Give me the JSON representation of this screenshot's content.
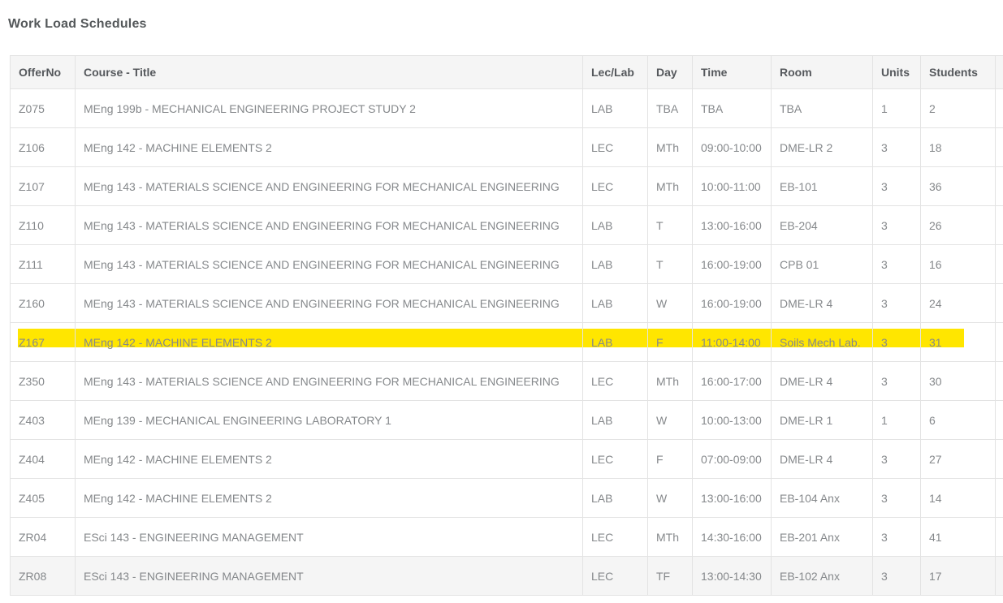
{
  "page": {
    "title": "Work Load Schedules"
  },
  "colors": {
    "highlight": "#ffe600",
    "header_bg": "#f5f5f5",
    "shaded_row_bg": "#f5f5f5",
    "border": "#e3e3e3",
    "header_text": "#55585c",
    "cell_text": "#85888b",
    "title_text": "#54585a"
  },
  "table": {
    "columns": [
      "OfferNo",
      "Course - Title",
      "Lec/Lab",
      "Day",
      "Time",
      "Room",
      "Units",
      "Students"
    ],
    "highlighted_offer_no": "Z167",
    "shaded_offer_no": "ZR08",
    "rows": [
      {
        "offer_no": "Z075",
        "course_title": "MEng 199b - MECHANICAL ENGINEERING PROJECT STUDY 2",
        "lec_lab": "LAB",
        "day": "TBA",
        "time": "TBA",
        "room": "TBA",
        "units": "1",
        "students": "2"
      },
      {
        "offer_no": "Z106",
        "course_title": "MEng 142 - MACHINE ELEMENTS 2",
        "lec_lab": "LEC",
        "day": "MTh",
        "time": "09:00-10:00",
        "room": "DME-LR 2",
        "units": "3",
        "students": "18"
      },
      {
        "offer_no": "Z107",
        "course_title": "MEng 143 - MATERIALS SCIENCE AND ENGINEERING FOR MECHANICAL ENGINEERING",
        "lec_lab": "LEC",
        "day": "MTh",
        "time": "10:00-11:00",
        "room": "EB-101",
        "units": "3",
        "students": "36"
      },
      {
        "offer_no": "Z110",
        "course_title": "MEng 143 - MATERIALS SCIENCE AND ENGINEERING FOR MECHANICAL ENGINEERING",
        "lec_lab": "LAB",
        "day": "T",
        "time": "13:00-16:00",
        "room": "EB-204",
        "units": "3",
        "students": "26"
      },
      {
        "offer_no": "Z111",
        "course_title": "MEng 143 - MATERIALS SCIENCE AND ENGINEERING FOR MECHANICAL ENGINEERING",
        "lec_lab": "LAB",
        "day": "T",
        "time": "16:00-19:00",
        "room": "CPB 01",
        "units": "3",
        "students": "16"
      },
      {
        "offer_no": "Z160",
        "course_title": "MEng 143 - MATERIALS SCIENCE AND ENGINEERING FOR MECHANICAL ENGINEERING",
        "lec_lab": "LAB",
        "day": "W",
        "time": "16:00-19:00",
        "room": "DME-LR 4",
        "units": "3",
        "students": "24"
      },
      {
        "offer_no": "Z167",
        "course_title": "MEng 142 - MACHINE ELEMENTS 2",
        "lec_lab": "LAB",
        "day": "F",
        "time": "11:00-14:00",
        "room": "Soils Mech Lab.",
        "units": "3",
        "students": "31"
      },
      {
        "offer_no": "Z350",
        "course_title": "MEng 143 - MATERIALS SCIENCE AND ENGINEERING FOR MECHANICAL ENGINEERING",
        "lec_lab": "LEC",
        "day": "MTh",
        "time": "16:00-17:00",
        "room": "DME-LR 4",
        "units": "3",
        "students": "30"
      },
      {
        "offer_no": "Z403",
        "course_title": "MEng 139 - MECHANICAL ENGINEERING LABORATORY 1",
        "lec_lab": "LAB",
        "day": "W",
        "time": "10:00-13:00",
        "room": "DME-LR 1",
        "units": "1",
        "students": "6"
      },
      {
        "offer_no": "Z404",
        "course_title": "MEng 142 - MACHINE ELEMENTS 2",
        "lec_lab": "LEC",
        "day": "F",
        "time": "07:00-09:00",
        "room": "DME-LR 4",
        "units": "3",
        "students": "27"
      },
      {
        "offer_no": "Z405",
        "course_title": "MEng 142 - MACHINE ELEMENTS 2",
        "lec_lab": "LAB",
        "day": "W",
        "time": "13:00-16:00",
        "room": "EB-104 Anx",
        "units": "3",
        "students": "14"
      },
      {
        "offer_no": "ZR04",
        "course_title": "ESci 143 - ENGINEERING MANAGEMENT",
        "lec_lab": "LEC",
        "day": "MTh",
        "time": "14:30-16:00",
        "room": "EB-201 Anx",
        "units": "3",
        "students": "41"
      },
      {
        "offer_no": "ZR08",
        "course_title": "ESci 143 - ENGINEERING MANAGEMENT",
        "lec_lab": "LEC",
        "day": "TF",
        "time": "13:00-14:30",
        "room": "EB-102 Anx",
        "units": "3",
        "students": "17"
      }
    ]
  }
}
